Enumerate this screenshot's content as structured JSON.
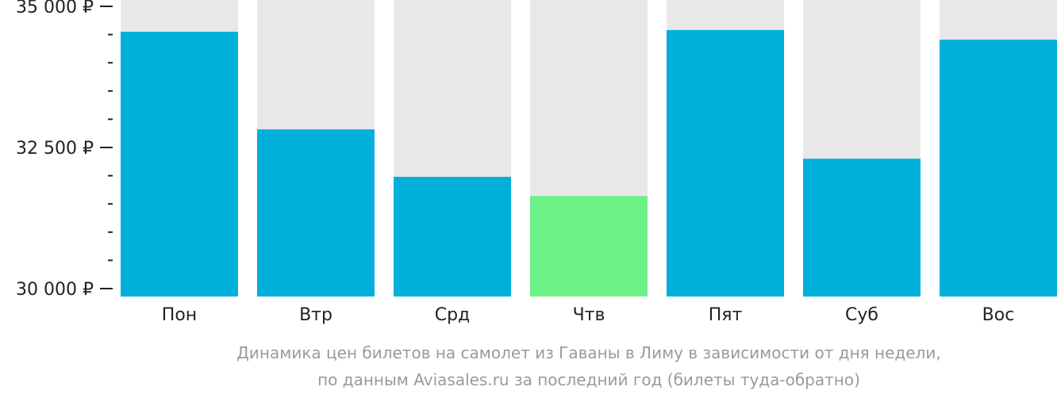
{
  "chart_data": {
    "type": "bar",
    "categories": [
      "Пон",
      "Втр",
      "Срд",
      "Чтв",
      "Пят",
      "Суб",
      "Вос"
    ],
    "values": [
      34550,
      32820,
      31980,
      31640,
      34580,
      32300,
      34410
    ],
    "highlight_index": 3,
    "ylim": [
      30000,
      35000
    ],
    "y_ticks": [
      {
        "value": 30000,
        "label": "30 000 ₽"
      },
      {
        "value": 32500,
        "label": "32 500 ₽"
      },
      {
        "value": 35000,
        "label": "35 000 ₽"
      }
    ],
    "y_minor_step": 500,
    "xlabel": "",
    "ylabel": "",
    "grid": false,
    "caption_lines": [
      "Динамика цен билетов на самолет из Гаваны в Лиму в зависимости от дня недели,",
      "по данным Aviasales.ru за последний год (билеты туда-обратно)"
    ]
  },
  "colors": {
    "bar": "#00b0db",
    "bar_highlight": "#6cf186",
    "bar_background": "#e8e8e8",
    "axis_text": "#222222",
    "caption_text": "#9a9a9a"
  }
}
